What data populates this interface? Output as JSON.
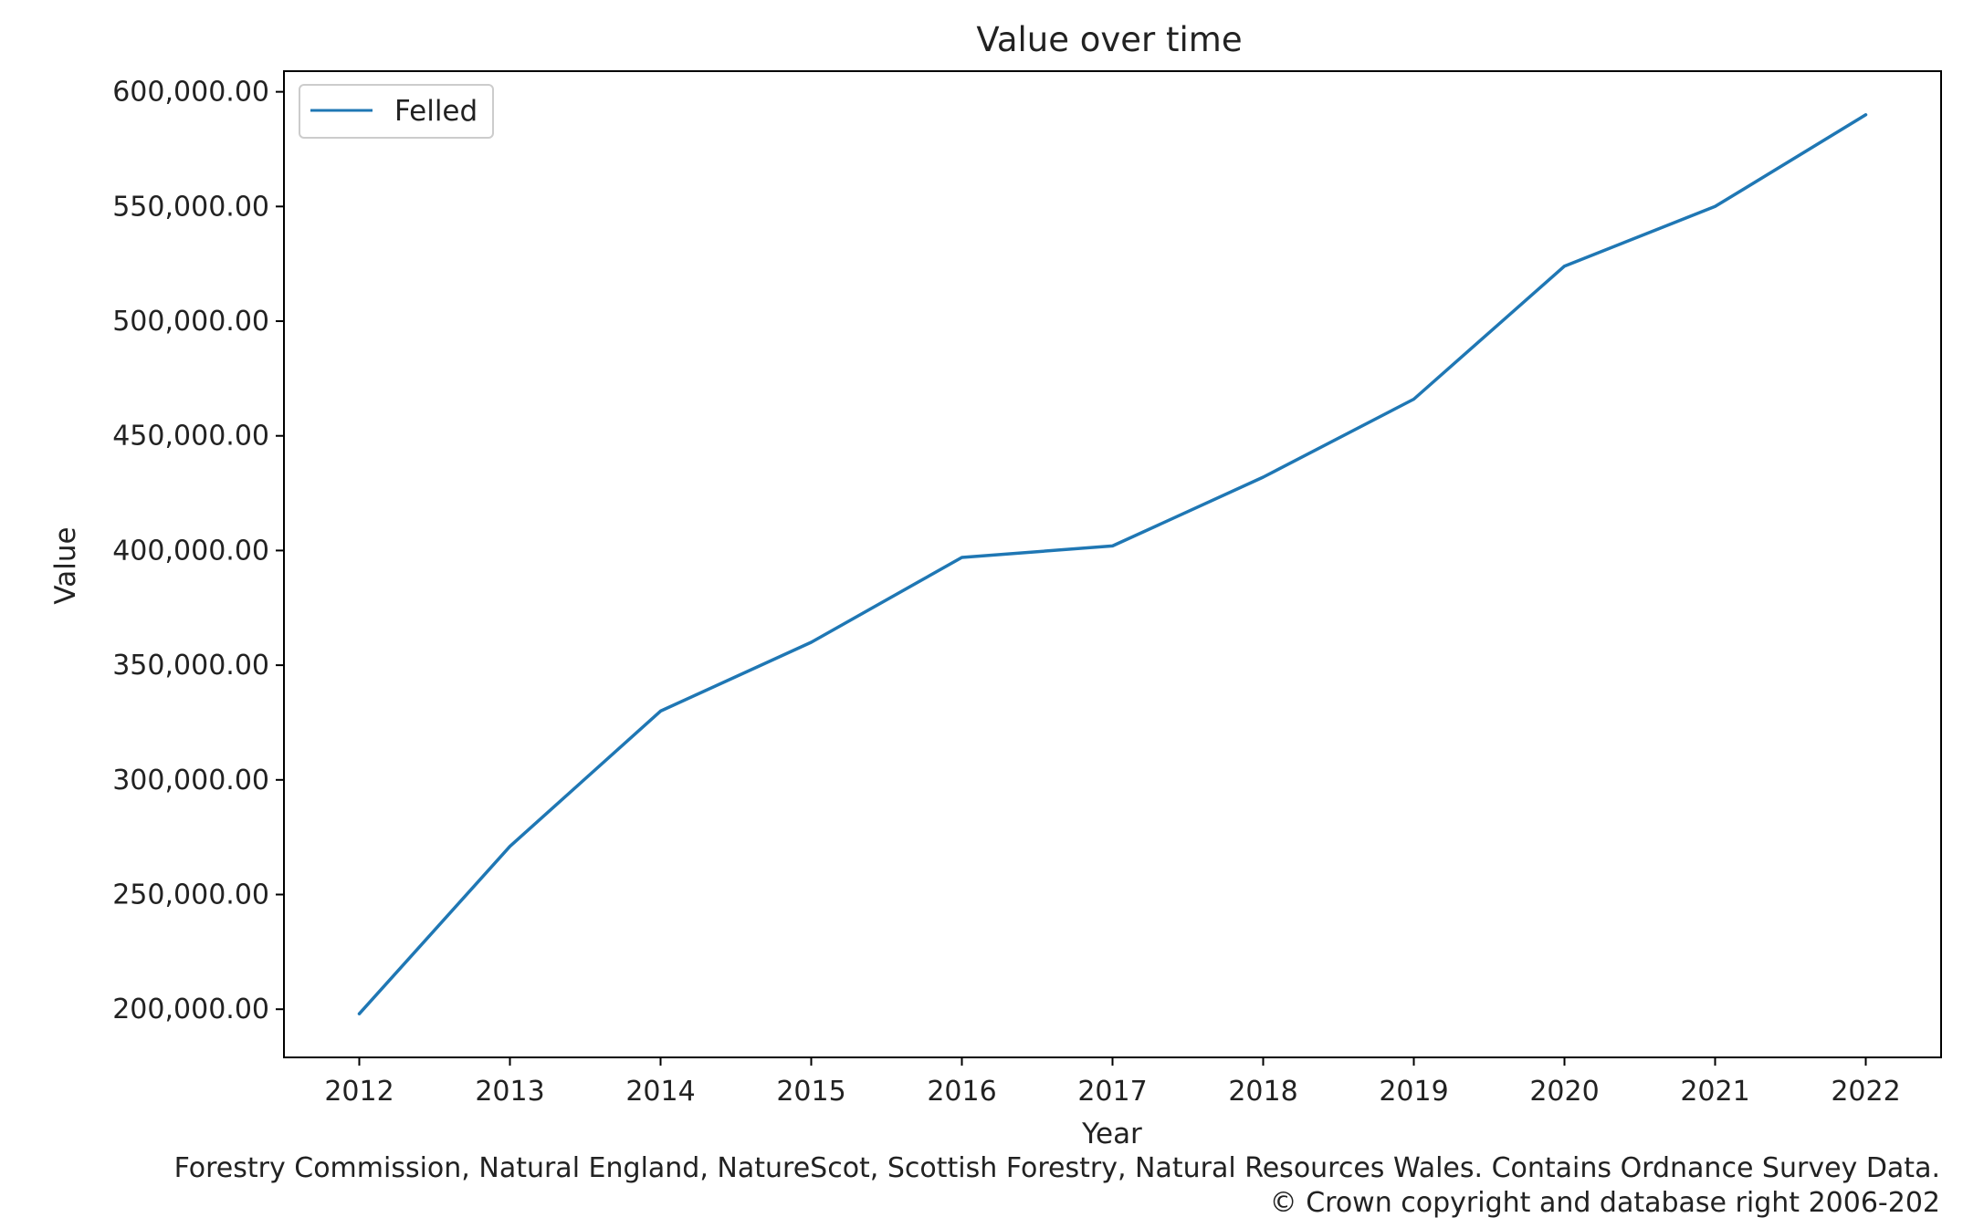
{
  "chart_data": {
    "type": "line",
    "title": "Value over time",
    "xlabel": "Year",
    "ylabel": "Value",
    "x": [
      2012,
      2013,
      2014,
      2015,
      2016,
      2017,
      2018,
      2019,
      2020,
      2021,
      2022
    ],
    "x_tick_labels": [
      "2012",
      "2013",
      "2014",
      "2015",
      "2016",
      "2017",
      "2018",
      "2019",
      "2020",
      "2021",
      "2022"
    ],
    "xlim": [
      2011.5,
      2022.5
    ],
    "series": [
      {
        "name": "Felled",
        "color": "#1f77b4",
        "values": [
          198000,
          271000,
          330000,
          360000,
          397000,
          402000,
          432000,
          466000,
          524000,
          550000,
          590000
        ]
      }
    ],
    "y_ticks": [
      200000,
      250000,
      300000,
      350000,
      400000,
      450000,
      500000,
      550000,
      600000
    ],
    "y_tick_labels": [
      "200,000.00",
      "250,000.00",
      "300,000.00",
      "350,000.00",
      "400,000.00",
      "450,000.00",
      "500,000.00",
      "550,000.00",
      "600,000.00"
    ],
    "ylim": [
      179000,
      609000
    ],
    "grid": false,
    "legend": "top-left"
  },
  "caption": {
    "line1": "Forestry Commission, Natural England, NatureScot, Scottish Forestry, Natural Resources Wales. Contains Ordnance Survey Data.",
    "line2": "© Crown copyright and database right 2006-202"
  }
}
